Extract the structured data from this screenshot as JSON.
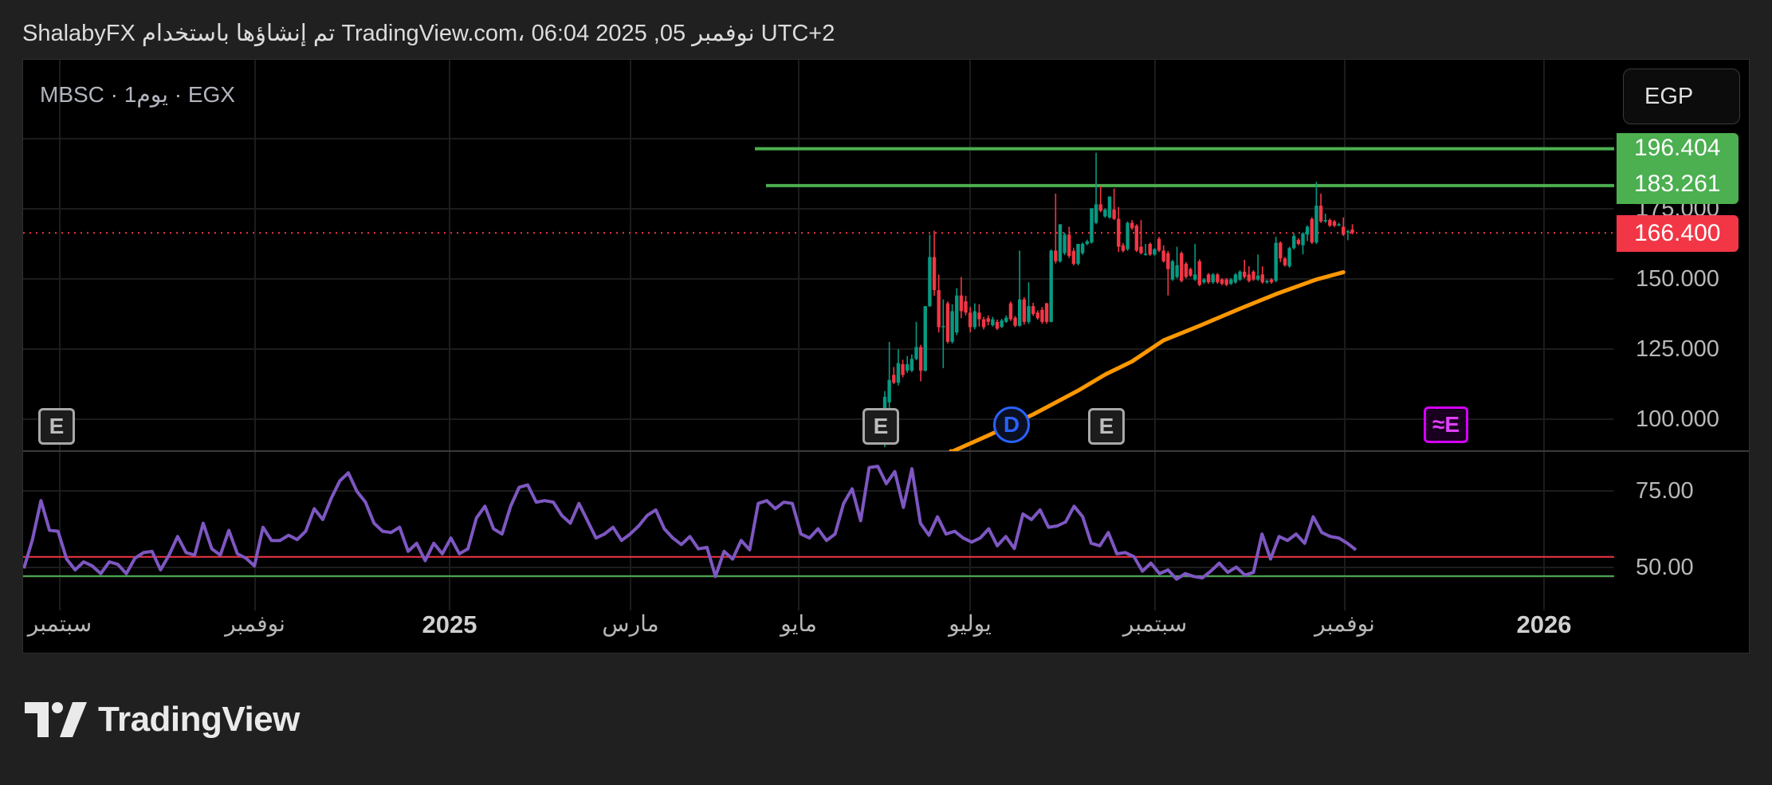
{
  "header": {
    "title": "ShalabyFX تم إنشاؤها باستخدام TradingView.com، 06:04 2025 ,05 نوفمبر UTC+2"
  },
  "legend": {
    "symbol_line": "MBSC · 1يوم · EGX"
  },
  "currency_button": "EGP",
  "price_axis": {
    "ticks": [
      "175.000",
      "150.000",
      "125.000",
      "100.000"
    ]
  },
  "rsi_axis": {
    "ticks": [
      "75.00",
      "50.00"
    ]
  },
  "price_tags": {
    "level_1": "196.404",
    "level_2": "183.261",
    "last": "166.400"
  },
  "time_axis": [
    {
      "label": "سبتمبر",
      "year": false
    },
    {
      "label": "نوفمبر",
      "year": false
    },
    {
      "label": "2025",
      "year": true
    },
    {
      "label": "مارس",
      "year": false
    },
    {
      "label": "مايو",
      "year": false
    },
    {
      "label": "يوليو",
      "year": false
    },
    {
      "label": "سبتمبر",
      "year": false
    },
    {
      "label": "نوفمبر",
      "year": false
    },
    {
      "label": "2026",
      "year": true
    }
  ],
  "markers": [
    {
      "type": "earnings",
      "label": "E"
    },
    {
      "type": "earnings",
      "label": "E"
    },
    {
      "type": "dividend",
      "label": "D"
    },
    {
      "type": "earnings",
      "label": "E"
    },
    {
      "type": "earnings-upcoming",
      "label": "≈E"
    }
  ],
  "branding": {
    "logo_text": "TradingView"
  },
  "colors": {
    "up": "#089981",
    "down": "#f23645",
    "level": "#4caf50",
    "ma": "#ff9800",
    "rsi": "#7e57c2",
    "rsi_upper": "#f23645",
    "rsi_lower": "#4caf50",
    "last_price": "#f23645"
  },
  "chart_data": [
    {
      "type": "candlestick",
      "pane": "price",
      "ylim": [
        89,
        205
      ],
      "last_price": 166.4,
      "levels": [
        196.404,
        183.261
      ],
      "candles": [
        [
          95,
          110,
          90,
          108
        ],
        [
          106,
          127.6,
          104,
          114
        ],
        [
          115.8,
          118.6,
          112.5,
          113
        ],
        [
          113,
          124.9,
          112,
          120
        ],
        [
          119.6,
          121.2,
          114.9,
          115.8
        ],
        [
          117.3,
          122.5,
          116.5,
          119.6
        ],
        [
          117.3,
          123.1,
          116.8,
          121.5
        ],
        [
          121.5,
          134.7,
          121,
          125.7
        ],
        [
          125.7,
          126.5,
          113.5,
          117.3
        ],
        [
          117.3,
          140.3,
          117,
          140.3
        ],
        [
          140.3,
          165.8,
          140,
          157.8
        ],
        [
          157.8,
          167.2,
          144,
          146
        ],
        [
          146,
          151.6,
          130.9,
          132.8
        ],
        [
          133,
          142.7,
          118.2,
          133.2
        ],
        [
          141.3,
          142,
          127,
          127.6
        ],
        [
          127.6,
          141,
          127,
          138.5
        ],
        [
          130.9,
          146.7,
          130,
          144.1
        ],
        [
          144.1,
          150.7,
          136,
          138.5
        ],
        [
          142,
          144,
          137,
          138
        ],
        [
          138,
          140,
          131,
          132.8
        ],
        [
          132.8,
          141.3,
          132,
          138.5
        ],
        [
          138,
          141,
          133,
          135.6
        ],
        [
          135.6,
          136.5,
          132,
          132.8
        ],
        [
          136,
          137,
          133.5,
          134.7
        ],
        [
          133.5,
          136.5,
          133,
          135.6
        ],
        [
          134.7,
          135.5,
          131.8,
          132.3
        ],
        [
          132.9,
          135.8,
          132.5,
          135.2
        ],
        [
          134.7,
          137,
          134.3,
          136.2
        ],
        [
          141.3,
          142,
          135,
          135.6
        ],
        [
          136.2,
          136.8,
          132.8,
          133.3
        ],
        [
          133.3,
          160.1,
          133,
          142.7
        ],
        [
          142.7,
          143.5,
          133.8,
          134.7
        ],
        [
          134.7,
          148.8,
          134,
          140.3
        ],
        [
          140.3,
          141.5,
          136.8,
          137.5
        ],
        [
          138,
          138.8,
          135.5,
          136
        ],
        [
          139,
          140,
          134,
          134.7
        ],
        [
          141.3,
          141.5,
          134,
          134.7
        ],
        [
          134.7,
          160.5,
          134.5,
          160.1
        ],
        [
          160.1,
          180.4,
          155.5,
          156.3
        ],
        [
          156.3,
          169.5,
          155.8,
          169.5
        ],
        [
          159.2,
          166.5,
          158.5,
          165.8
        ],
        [
          165.8,
          168.6,
          157.5,
          158.2
        ],
        [
          160,
          161,
          154.8,
          155.4
        ],
        [
          155.4,
          162.5,
          154.8,
          162.5
        ],
        [
          159.2,
          163,
          158.6,
          162.5
        ],
        [
          162.5,
          164,
          162,
          163.4
        ],
        [
          163,
          175.2,
          162.6,
          175.2
        ],
        [
          170,
          195,
          169.5,
          176.6
        ],
        [
          176.6,
          183.2,
          173.8,
          174.3
        ],
        [
          172.3,
          175.2,
          171.8,
          174.7
        ],
        [
          171.9,
          179.4,
          171.5,
          179.4
        ],
        [
          174.7,
          182.2,
          171,
          171.4
        ],
        [
          171.4,
          175.6,
          159.6,
          161.5
        ],
        [
          162,
          162.8,
          159.5,
          160
        ],
        [
          160.6,
          170.5,
          160,
          170
        ],
        [
          170,
          171,
          167.5,
          168.1
        ],
        [
          169,
          169.5,
          159.6,
          160.1
        ],
        [
          161.5,
          171,
          158.7,
          159.2
        ],
        [
          158.7,
          162.5,
          158.3,
          159
        ],
        [
          162.5,
          163,
          158.2,
          158.7
        ],
        [
          158.7,
          161,
          158.3,
          160.6
        ],
        [
          164.3,
          165,
          159.6,
          160.1
        ],
        [
          160.1,
          162,
          155.8,
          156.3
        ],
        [
          159.2,
          160,
          144.1,
          153.5
        ],
        [
          149.8,
          156.8,
          149.3,
          156.3
        ],
        [
          150.7,
          161.5,
          150.2,
          154.9
        ],
        [
          159.2,
          159.8,
          148.8,
          149.3
        ],
        [
          155.4,
          156,
          150.2,
          150.7
        ],
        [
          153.5,
          154,
          150.7,
          151.2
        ],
        [
          149.8,
          162.5,
          149.3,
          151.6
        ],
        [
          156.3,
          157,
          147.4,
          147.9
        ],
        [
          148.8,
          150.3,
          148.3,
          149.8
        ],
        [
          151.6,
          152.1,
          148.3,
          148.8
        ],
        [
          148.8,
          152.1,
          148.3,
          151.6
        ],
        [
          151.6,
          152.1,
          148.3,
          148.8
        ],
        [
          149.8,
          150.3,
          147.8,
          148.3
        ],
        [
          149.8,
          150.3,
          147.4,
          147.9
        ],
        [
          148.3,
          150.3,
          147.8,
          149.8
        ],
        [
          148.8,
          152.1,
          148.3,
          151.6
        ],
        [
          149.8,
          153.1,
          149.3,
          152.6
        ],
        [
          152.6,
          156.8,
          150.2,
          150.7
        ],
        [
          151.6,
          154.5,
          148.8,
          149.3
        ],
        [
          152.6,
          153.1,
          149.3,
          149.8
        ],
        [
          149.8,
          158.7,
          149.3,
          151.2
        ],
        [
          151.6,
          154.5,
          148.3,
          148.8
        ],
        [
          148.8,
          149.8,
          148.3,
          149.3
        ],
        [
          149.8,
          150.3,
          148.3,
          148.8
        ],
        [
          149.3,
          165,
          148.8,
          162.9
        ],
        [
          162.9,
          163.4,
          156,
          157.3
        ],
        [
          157.3,
          157.8,
          154.4,
          154.9
        ],
        [
          154.5,
          161.5,
          154,
          161
        ],
        [
          161,
          166.3,
          160.5,
          165.3
        ],
        [
          163.9,
          164.5,
          162,
          162.5
        ],
        [
          162,
          166.7,
          158.8,
          166.2
        ],
        [
          165.8,
          169.1,
          163.5,
          168.6
        ],
        [
          171.4,
          172,
          162.5,
          163
        ],
        [
          163,
          184.6,
          162.5,
          176.1
        ],
        [
          176.1,
          180.4,
          170,
          170.5
        ],
        [
          170.5,
          173.3,
          170,
          171
        ],
        [
          171,
          171.5,
          168.5,
          169
        ],
        [
          170.5,
          171,
          168.5,
          169
        ],
        [
          169.2,
          170,
          168.8,
          169.5
        ],
        [
          168.6,
          171.9,
          165.3,
          165.8
        ],
        [
          166.7,
          167.5,
          163.8,
          167
        ],
        [
          167.6,
          169.5,
          165.9,
          166.4
        ]
      ],
      "moving_average": [
        [
          15,
          88.5
        ],
        [
          23,
          94.2
        ],
        [
          33,
          101.7
        ],
        [
          43,
          110.2
        ],
        [
          49,
          115.9
        ],
        [
          55,
          120.6
        ],
        [
          62,
          128.1
        ],
        [
          70,
          133.3
        ],
        [
          79,
          139.4
        ],
        [
          87,
          144.6
        ],
        [
          96,
          149.8
        ],
        [
          102,
          152.4
        ]
      ]
    },
    {
      "type": "line",
      "pane": "oscillator",
      "ylim": [
        44,
        86
      ],
      "bands": [
        53.4,
        47.2
      ],
      "values": [
        49.7,
        59,
        71.6,
        62,
        61.7,
        52.7,
        49.2,
        51.8,
        50.5,
        48,
        51.8,
        51,
        48,
        53,
        54.8,
        55.2,
        49.2,
        54,
        60,
        54.8,
        54,
        64.3,
        56,
        54,
        62,
        54.4,
        53,
        50.5,
        63,
        58.7,
        58.7,
        60.4,
        59,
        61.7,
        69,
        65.5,
        72.4,
        78,
        80.6,
        74.6,
        71.1,
        64.3,
        61.7,
        61.3,
        63,
        55.2,
        57.8,
        52.2,
        57.8,
        54.4,
        59.5,
        54.4,
        56,
        66,
        69.8,
        62.5,
        60.8,
        69.8,
        75.9,
        76.7,
        71.1,
        71.6,
        71.1,
        66.8,
        64.3,
        70.7,
        65.1,
        59.5,
        60.8,
        63,
        58.7,
        60.8,
        63.4,
        66.8,
        68.6,
        62.5,
        59.5,
        57.4,
        60,
        56,
        56.5,
        47.1,
        55.2,
        52.7,
        58.7,
        55.7,
        70.7,
        71.6,
        69,
        71.1,
        70.7,
        60.8,
        59.5,
        62.5,
        58.7,
        60.8,
        70.7,
        75.4,
        65.1,
        82.3,
        82.7,
        77.1,
        81,
        69.4,
        81.9,
        64.3,
        60.4,
        66.4,
        60.8,
        61.7,
        59.5,
        58.2,
        59.5,
        62.5,
        57,
        60,
        56.1,
        67.3,
        65.5,
        68.6,
        63,
        63.4,
        64.7,
        69.8,
        66.4,
        57.8,
        57,
        61.3,
        54.4,
        54.8,
        53.5,
        48.8,
        51.4,
        48,
        49.2,
        46.2,
        48,
        47.1,
        46.6,
        48.8,
        51.4,
        48.4,
        50.1,
        47.5,
        48.4,
        60.8,
        52.7,
        60,
        58.7,
        60.8,
        57.8,
        66.4,
        61.3,
        60,
        59.5,
        57.8,
        55.7
      ]
    }
  ]
}
